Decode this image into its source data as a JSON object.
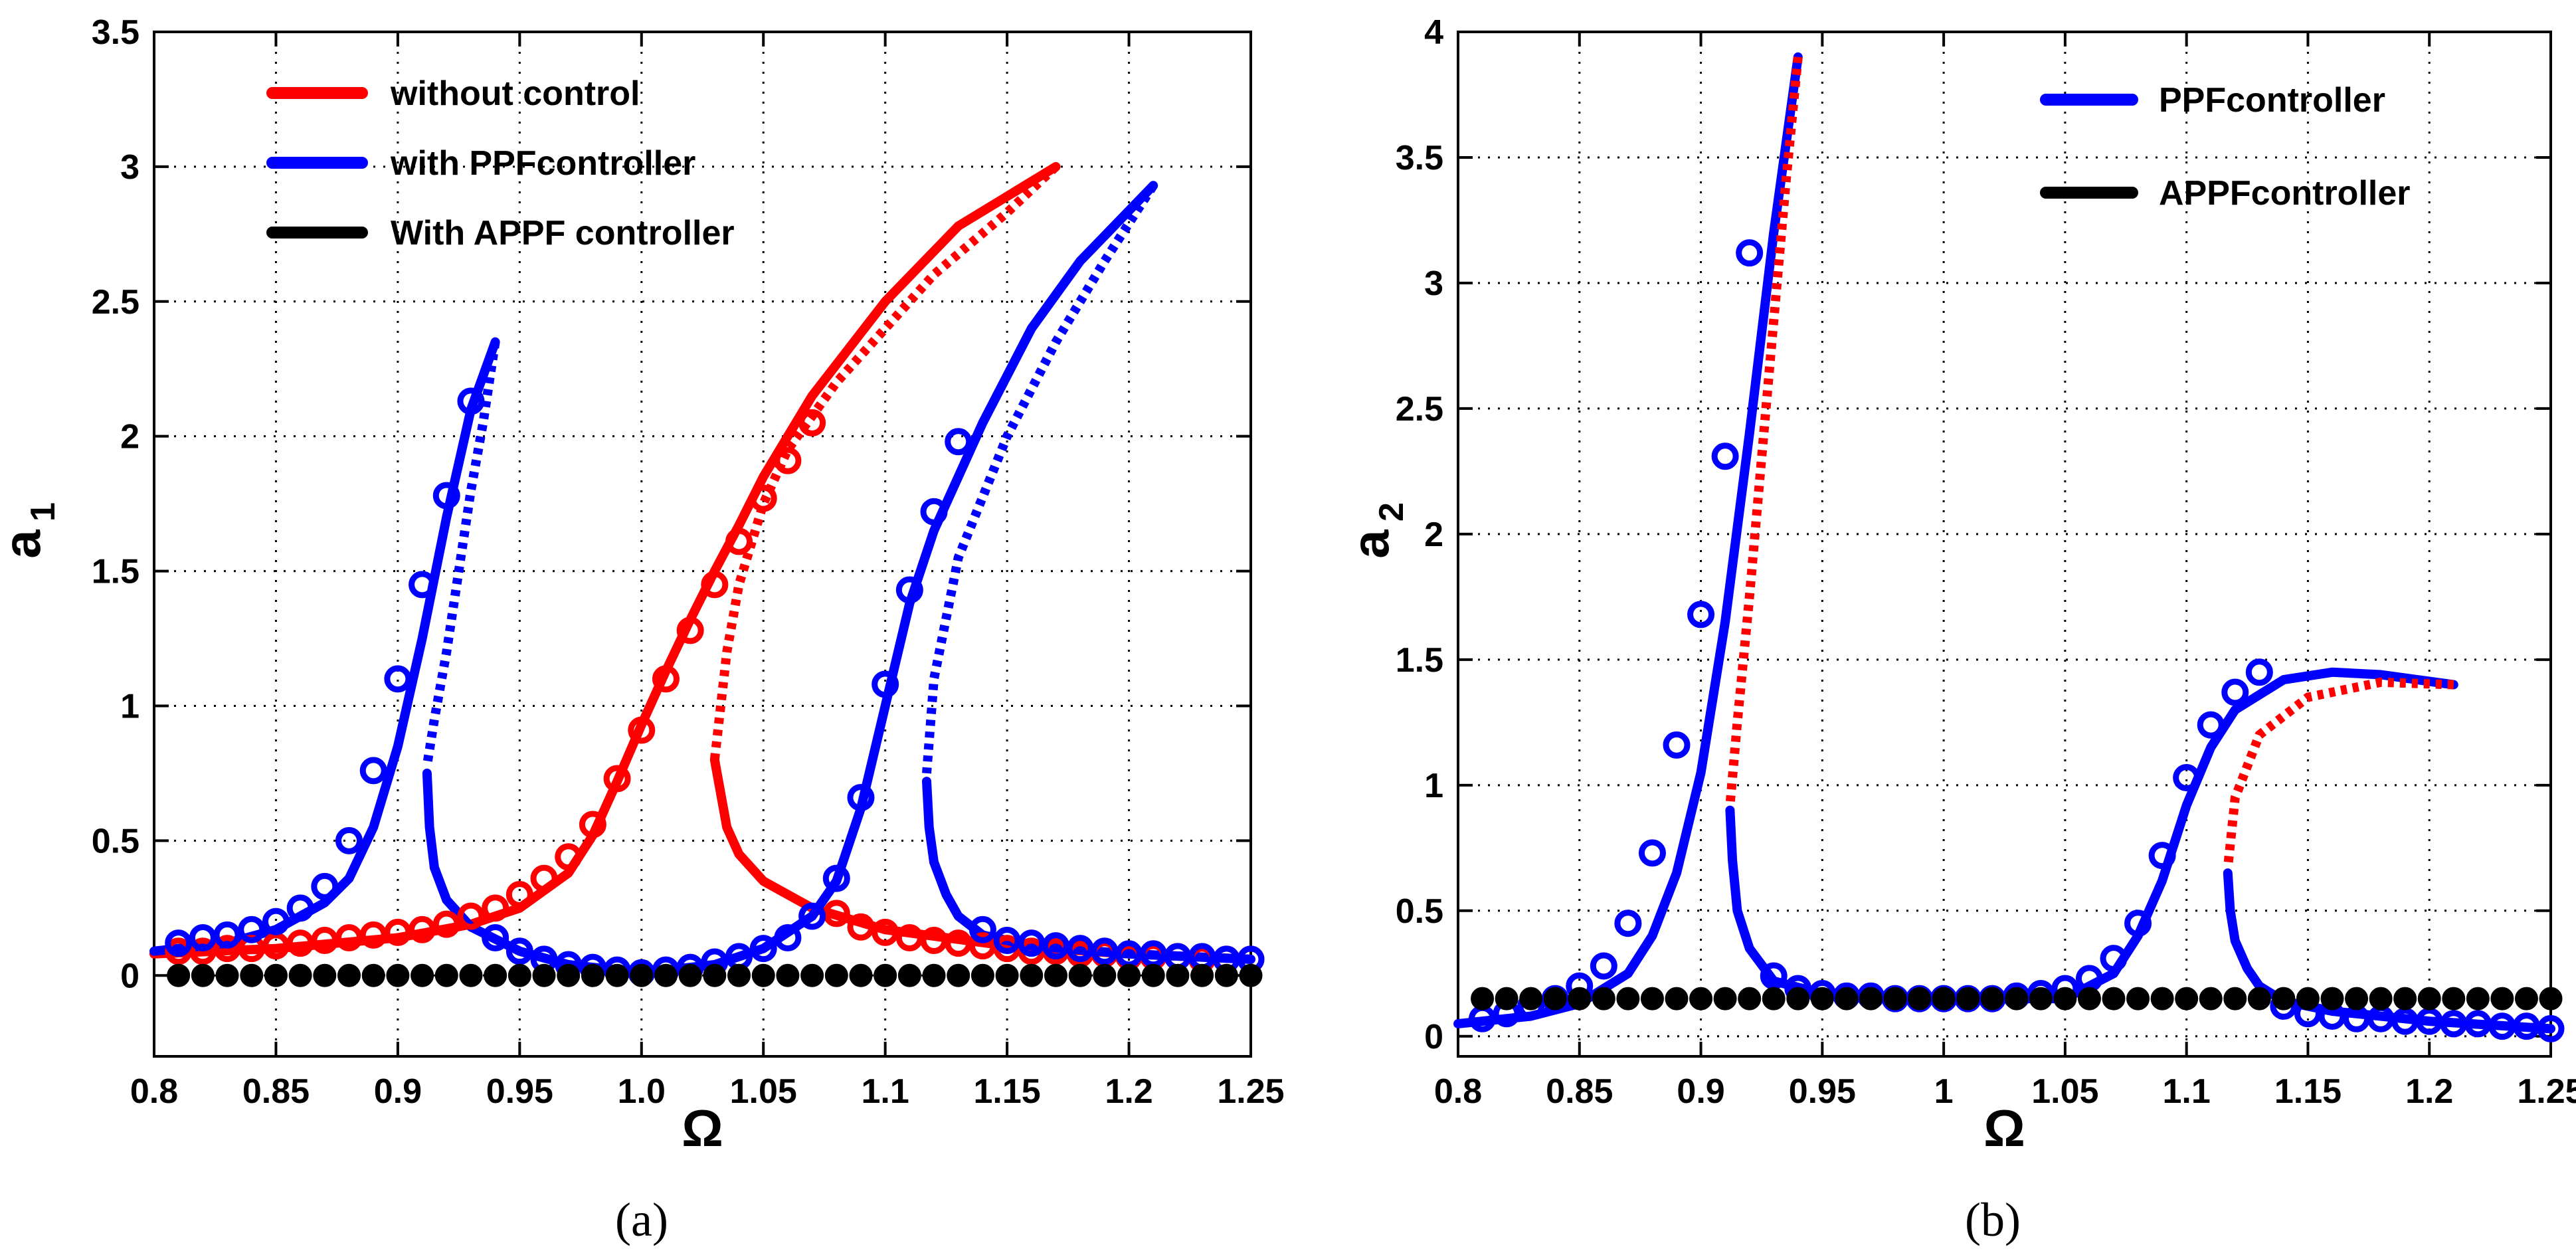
{
  "colors": {
    "red": "#ff0000",
    "blue": "#0000ff",
    "black": "#000000"
  },
  "chart_data": [
    {
      "id": "a",
      "type": "line",
      "caption": "(a)",
      "xlabel": "Ω",
      "ylabel": "a",
      "ylabel_sub": "1",
      "xlim": [
        0.8,
        1.25
      ],
      "ylim": [
        -0.3,
        3.5
      ],
      "xticks": [
        "0.8",
        "0.85",
        "0.9",
        "0.95",
        "1.0",
        "1.05",
        "1.1",
        "1.15",
        "1.2",
        "1.25"
      ],
      "yticks": [
        "0",
        "0.5",
        "1",
        "1.5",
        "2",
        "2.5",
        "3",
        "3.5"
      ],
      "xtick_values": [
        0.8,
        0.85,
        0.9,
        0.95,
        1.0,
        1.05,
        1.1,
        1.15,
        1.2,
        1.25
      ],
      "ytick_values": [
        0,
        0.5,
        1,
        1.5,
        2,
        2.5,
        3,
        3.5
      ],
      "legend": [
        {
          "label": "without control",
          "color": "#ff0000"
        },
        {
          "label": "with PPFcontroller",
          "color": "#0000ff"
        },
        {
          "label": "With APPF controller",
          "color": "#000000"
        }
      ],
      "series": [
        {
          "name": "without control - stable lower",
          "color": "#ff0000",
          "style": "solid",
          "x": [
            0.8,
            0.85,
            0.9,
            0.93,
            0.95,
            0.97,
            0.98,
            0.99,
            1.0,
            1.01,
            1.02,
            1.03,
            1.04,
            1.05,
            1.07,
            1.1,
            1.13,
            1.17
          ],
          "y": [
            0.08,
            0.1,
            0.14,
            0.19,
            0.25,
            0.38,
            0.52,
            0.72,
            0.93,
            1.13,
            1.32,
            1.5,
            1.67,
            1.85,
            2.15,
            2.5,
            2.78,
            3.0
          ]
        },
        {
          "name": "without control - unstable",
          "color": "#ff0000",
          "style": "dotted",
          "x": [
            1.17,
            1.15,
            1.12,
            1.1,
            1.08,
            1.06,
            1.05,
            1.04,
            1.035,
            1.03
          ],
          "y": [
            3.0,
            2.83,
            2.6,
            2.4,
            2.2,
            1.95,
            1.75,
            1.45,
            1.2,
            0.8
          ]
        },
        {
          "name": "without control - stable upper",
          "color": "#ff0000",
          "style": "solid",
          "x": [
            1.03,
            1.035,
            1.04,
            1.05,
            1.07,
            1.1,
            1.15,
            1.2,
            1.25
          ],
          "y": [
            0.8,
            0.55,
            0.45,
            0.35,
            0.25,
            0.17,
            0.11,
            0.08,
            0.06
          ]
        },
        {
          "name": "PPF - branch 1 stable",
          "color": "#0000ff",
          "style": "solid",
          "x": [
            0.8,
            0.83,
            0.85,
            0.87,
            0.88,
            0.89,
            0.9,
            0.91,
            0.92,
            0.93,
            0.94
          ],
          "y": [
            0.09,
            0.12,
            0.17,
            0.27,
            0.36,
            0.55,
            0.85,
            1.25,
            1.7,
            2.1,
            2.35
          ]
        },
        {
          "name": "PPF - branch 1 unstable",
          "color": "#0000ff",
          "style": "dotted",
          "x": [
            0.94,
            0.935,
            0.93,
            0.925,
            0.92,
            0.915,
            0.912
          ],
          "y": [
            2.35,
            2.05,
            1.8,
            1.5,
            1.2,
            0.95,
            0.78
          ]
        },
        {
          "name": "PPF - branch 1 lower",
          "color": "#0000ff",
          "style": "solid",
          "x": [
            0.912,
            0.913,
            0.915,
            0.92,
            0.93,
            0.95,
            0.97,
            1.0,
            1.03,
            1.05,
            1.07
          ],
          "y": [
            0.75,
            0.55,
            0.4,
            0.28,
            0.18,
            0.09,
            0.04,
            0.01,
            0.04,
            0.1,
            0.22
          ]
        },
        {
          "name": "PPF - branch 2 stable",
          "color": "#0000ff",
          "style": "solid",
          "x": [
            1.07,
            1.08,
            1.09,
            1.1,
            1.11,
            1.12,
            1.14,
            1.16,
            1.18,
            1.21
          ],
          "y": [
            0.22,
            0.35,
            0.62,
            1.0,
            1.38,
            1.65,
            2.05,
            2.4,
            2.65,
            2.93
          ]
        },
        {
          "name": "PPF - branch 2 unstable",
          "color": "#0000ff",
          "style": "dotted",
          "x": [
            1.21,
            1.19,
            1.17,
            1.15,
            1.13,
            1.12,
            1.117
          ],
          "y": [
            2.93,
            2.65,
            2.35,
            2.0,
            1.55,
            1.1,
            0.75
          ]
        },
        {
          "name": "PPF - branch 2 lower",
          "color": "#0000ff",
          "style": "solid",
          "x": [
            1.117,
            1.118,
            1.12,
            1.125,
            1.13,
            1.14,
            1.16,
            1.2,
            1.25
          ],
          "y": [
            0.72,
            0.55,
            0.42,
            0.3,
            0.22,
            0.15,
            0.11,
            0.08,
            0.06
          ]
        }
      ],
      "markers": [
        {
          "name": "without control - markers",
          "color": "#ff0000",
          "filled": false,
          "x": [
            0.81,
            0.82,
            0.83,
            0.84,
            0.85,
            0.86,
            0.87,
            0.88,
            0.89,
            0.9,
            0.91,
            0.92,
            0.93,
            0.94,
            0.95,
            0.96,
            0.97,
            0.98,
            0.99,
            1.0,
            1.01,
            1.02,
            1.03,
            1.04,
            1.05,
            1.06,
            1.07,
            1.08,
            1.09,
            1.1,
            1.11,
            1.12,
            1.13,
            1.14,
            1.15,
            1.16,
            1.17,
            1.18,
            1.19,
            1.2,
            1.21,
            1.22,
            1.23,
            1.24,
            1.25
          ],
          "y": [
            0.09,
            0.09,
            0.1,
            0.1,
            0.11,
            0.12,
            0.13,
            0.14,
            0.15,
            0.16,
            0.17,
            0.19,
            0.22,
            0.25,
            0.3,
            0.36,
            0.44,
            0.56,
            0.73,
            0.91,
            1.1,
            1.28,
            1.45,
            1.61,
            1.77,
            1.91,
            2.05,
            0.23,
            0.18,
            0.16,
            0.14,
            0.13,
            0.12,
            0.11,
            0.1,
            0.09,
            0.09,
            0.08,
            0.08,
            0.07,
            0.07,
            0.07,
            0.06,
            0.06,
            0.06
          ]
        },
        {
          "name": "PPF - markers",
          "color": "#0000ff",
          "filled": false,
          "x": [
            0.81,
            0.82,
            0.83,
            0.84,
            0.85,
            0.86,
            0.87,
            0.88,
            0.89,
            0.9,
            0.91,
            0.92,
            0.93,
            0.94,
            0.95,
            0.96,
            0.97,
            0.98,
            0.99,
            1.0,
            1.01,
            1.02,
            1.03,
            1.04,
            1.05,
            1.06,
            1.07,
            1.08,
            1.09,
            1.1,
            1.11,
            1.12,
            1.13,
            1.14,
            1.15,
            1.16,
            1.17,
            1.18,
            1.19,
            1.2,
            1.21,
            1.22,
            1.23,
            1.24,
            1.25
          ],
          "y": [
            0.12,
            0.14,
            0.15,
            0.17,
            0.2,
            0.25,
            0.33,
            0.5,
            0.76,
            1.1,
            1.45,
            1.78,
            2.13,
            0.14,
            0.09,
            0.06,
            0.04,
            0.03,
            0.02,
            0.01,
            0.02,
            0.03,
            0.05,
            0.07,
            0.1,
            0.14,
            0.22,
            0.36,
            0.66,
            1.08,
            1.43,
            1.72,
            1.98,
            0.17,
            0.13,
            0.12,
            0.11,
            0.1,
            0.09,
            0.08,
            0.08,
            0.07,
            0.07,
            0.06,
            0.06
          ]
        },
        {
          "name": "APPF - markers",
          "color": "#000000",
          "filled": true,
          "x": [
            0.81,
            0.82,
            0.83,
            0.84,
            0.85,
            0.86,
            0.87,
            0.88,
            0.89,
            0.9,
            0.91,
            0.92,
            0.93,
            0.94,
            0.95,
            0.96,
            0.97,
            0.98,
            0.99,
            1.0,
            1.01,
            1.02,
            1.03,
            1.04,
            1.05,
            1.06,
            1.07,
            1.08,
            1.09,
            1.1,
            1.11,
            1.12,
            1.13,
            1.14,
            1.15,
            1.16,
            1.17,
            1.18,
            1.19,
            1.2,
            1.21,
            1.22,
            1.23,
            1.24,
            1.25
          ],
          "y": [
            0,
            0,
            0,
            0,
            0,
            0,
            0,
            0,
            0,
            0,
            0,
            0,
            0,
            0,
            0,
            0,
            0,
            0,
            0,
            0,
            0,
            0,
            0,
            0,
            0,
            0,
            0,
            0,
            0,
            0,
            0,
            0,
            0,
            0,
            0,
            0,
            0,
            0,
            0,
            0,
            0,
            0,
            0,
            0,
            0
          ]
        }
      ]
    },
    {
      "id": "b",
      "type": "line",
      "caption": "(b)",
      "xlabel": "Ω",
      "ylabel": "a",
      "ylabel_sub": "2",
      "xlim": [
        0.8,
        1.25
      ],
      "ylim": [
        -0.08,
        4.0
      ],
      "xticks": [
        "0.8",
        "0.85",
        "0.9",
        "0.95",
        "1",
        "1.05",
        "1.1",
        "1.15",
        "1.2",
        "1.25"
      ],
      "yticks": [
        "0",
        "0.5",
        "1",
        "1.5",
        "2",
        "2.5",
        "3",
        "3.5",
        "4"
      ],
      "xtick_values": [
        0.8,
        0.85,
        0.9,
        0.95,
        1.0,
        1.05,
        1.1,
        1.15,
        1.2,
        1.25
      ],
      "ytick_values": [
        0,
        0.5,
        1,
        1.5,
        2,
        2.5,
        3,
        3.5,
        4
      ],
      "legend": [
        {
          "label": "PPFcontroller",
          "color": "#0000ff"
        },
        {
          "label": "APPFcontroller",
          "color": "#000000"
        }
      ],
      "series": [
        {
          "name": "PPF - branch 1 stable",
          "color": "#0000ff",
          "style": "solid",
          "x": [
            0.8,
            0.83,
            0.85,
            0.87,
            0.88,
            0.89,
            0.9,
            0.91,
            0.92,
            0.93,
            0.94
          ],
          "y": [
            0.05,
            0.08,
            0.13,
            0.25,
            0.4,
            0.65,
            1.05,
            1.65,
            2.4,
            3.2,
            3.9
          ]
        },
        {
          "name": "PPF - branch 1 unstable",
          "color": "#ff0000",
          "style": "dotted",
          "x": [
            0.94,
            0.935,
            0.93,
            0.925,
            0.92,
            0.915,
            0.912
          ],
          "y": [
            3.9,
            3.4,
            2.85,
            2.3,
            1.75,
            1.25,
            0.92
          ]
        },
        {
          "name": "PPF - branch 1 lower",
          "color": "#0000ff",
          "style": "solid",
          "x": [
            0.912,
            0.913,
            0.915,
            0.92,
            0.93,
            0.95,
            0.97,
            1.0,
            1.03,
            1.05
          ],
          "y": [
            0.9,
            0.7,
            0.5,
            0.35,
            0.22,
            0.17,
            0.15,
            0.15,
            0.15,
            0.15
          ]
        },
        {
          "name": "PPF - branch 2 stable",
          "color": "#0000ff",
          "style": "solid",
          "x": [
            1.05,
            1.07,
            1.08,
            1.09,
            1.1,
            1.11,
            1.12,
            1.14,
            1.16,
            1.18,
            1.21
          ],
          "y": [
            0.15,
            0.25,
            0.4,
            0.62,
            0.92,
            1.15,
            1.3,
            1.42,
            1.45,
            1.44,
            1.4
          ]
        },
        {
          "name": "PPF - branch 2 unstable",
          "color": "#ff0000",
          "style": "dotted",
          "x": [
            1.21,
            1.18,
            1.15,
            1.13,
            1.12,
            1.117
          ],
          "y": [
            1.4,
            1.41,
            1.35,
            1.2,
            0.95,
            0.67
          ]
        },
        {
          "name": "PPF - branch 2 lower",
          "color": "#0000ff",
          "style": "solid",
          "x": [
            1.117,
            1.118,
            1.12,
            1.125,
            1.13,
            1.14,
            1.16,
            1.2,
            1.25
          ],
          "y": [
            0.65,
            0.5,
            0.38,
            0.27,
            0.2,
            0.14,
            0.1,
            0.06,
            0.03
          ]
        }
      ],
      "markers": [
        {
          "name": "PPF - markers",
          "color": "#0000ff",
          "filled": false,
          "x": [
            0.81,
            0.82,
            0.83,
            0.84,
            0.85,
            0.86,
            0.87,
            0.88,
            0.89,
            0.9,
            0.91,
            0.92,
            0.93,
            0.94,
            0.95,
            0.96,
            0.97,
            0.98,
            0.99,
            1.0,
            1.01,
            1.02,
            1.03,
            1.04,
            1.05,
            1.06,
            1.07,
            1.08,
            1.09,
            1.1,
            1.11,
            1.12,
            1.13,
            1.14,
            1.15,
            1.16,
            1.17,
            1.18,
            1.19,
            1.2,
            1.21,
            1.22,
            1.23,
            1.24,
            1.25
          ],
          "y": [
            0.07,
            0.09,
            0.12,
            0.15,
            0.2,
            0.28,
            0.45,
            0.73,
            1.16,
            1.68,
            2.31,
            3.12,
            0.24,
            0.19,
            0.17,
            0.16,
            0.16,
            0.15,
            0.15,
            0.15,
            0.15,
            0.15,
            0.16,
            0.17,
            0.19,
            0.23,
            0.31,
            0.45,
            0.72,
            1.03,
            1.24,
            1.37,
            1.45,
            0.12,
            0.09,
            0.08,
            0.07,
            0.07,
            0.06,
            0.06,
            0.05,
            0.05,
            0.04,
            0.04,
            0.03
          ]
        },
        {
          "name": "APPF - markers",
          "color": "#000000",
          "filled": true,
          "x": [
            0.81,
            0.82,
            0.83,
            0.84,
            0.85,
            0.86,
            0.87,
            0.88,
            0.89,
            0.9,
            0.91,
            0.92,
            0.93,
            0.94,
            0.95,
            0.96,
            0.97,
            0.98,
            0.99,
            1.0,
            1.01,
            1.02,
            1.03,
            1.04,
            1.05,
            1.06,
            1.07,
            1.08,
            1.09,
            1.1,
            1.11,
            1.12,
            1.13,
            1.14,
            1.15,
            1.16,
            1.17,
            1.18,
            1.19,
            1.2,
            1.21,
            1.22,
            1.23,
            1.24,
            1.25
          ],
          "y": [
            0.15,
            0.15,
            0.15,
            0.15,
            0.15,
            0.15,
            0.15,
            0.15,
            0.15,
            0.15,
            0.15,
            0.15,
            0.15,
            0.15,
            0.15,
            0.15,
            0.15,
            0.15,
            0.15,
            0.15,
            0.15,
            0.15,
            0.15,
            0.15,
            0.15,
            0.15,
            0.15,
            0.15,
            0.15,
            0.15,
            0.15,
            0.15,
            0.15,
            0.15,
            0.15,
            0.15,
            0.15,
            0.15,
            0.15,
            0.15,
            0.15,
            0.15,
            0.15,
            0.15,
            0.15
          ]
        }
      ]
    }
  ]
}
